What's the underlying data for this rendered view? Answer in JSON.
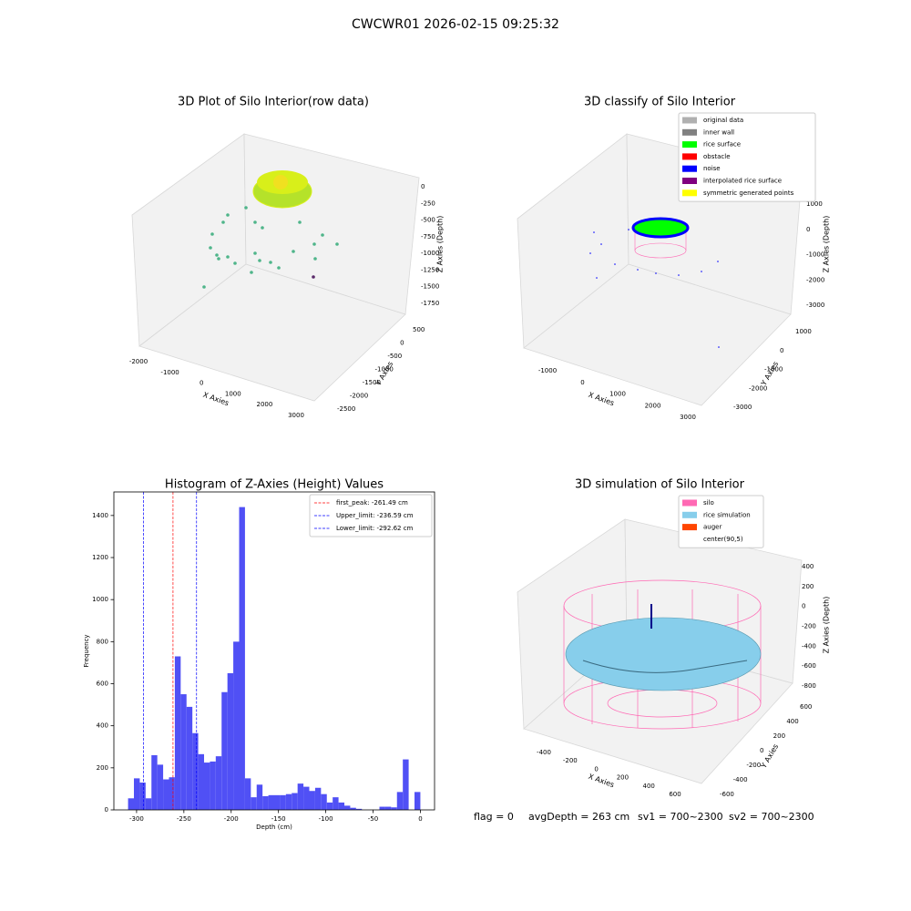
{
  "title": "CWCWR01 2026-02-15 09:25:32",
  "panels": [
    {
      "title": "3D Plot of Silo Interior(row data)",
      "x_label": "X Axies",
      "y_label": "Y Axies",
      "z_label": "Z Axies (Depth)",
      "xticks": [
        -2000,
        -1000,
        0,
        1000,
        2000,
        3000
      ],
      "yticks": [
        500,
        0,
        -500,
        -1000,
        -1500,
        -2000,
        -2500
      ],
      "zticks": [
        0,
        -250,
        -500,
        -750,
        -1000,
        -1250,
        -1500,
        -1750
      ]
    },
    {
      "title": "3D classify of Silo Interior",
      "x_label": "X Axies",
      "y_label": "Y Axies",
      "z_label": "Z Axies (Depth)",
      "xticks": [
        -1000,
        0,
        1000,
        2000,
        3000
      ],
      "yticks": [
        1000,
        0,
        -1000,
        -2000,
        -3000
      ],
      "zticks": [
        1000,
        0,
        -1000,
        -2000,
        -3000
      ],
      "legend": [
        {
          "name": "original data",
          "color": "#b0b0b0"
        },
        {
          "name": "inner wall",
          "color": "#808080"
        },
        {
          "name": "rice surface",
          "color": "#00ff00"
        },
        {
          "name": "obstacle",
          "color": "#ff0000"
        },
        {
          "name": "noise",
          "color": "#0000ff"
        },
        {
          "name": "interpolated rice surface",
          "color": "#800080"
        },
        {
          "name": "symmetric generated points",
          "color": "#ffff00"
        }
      ]
    },
    {
      "title": "3D simulation of Silo Interior",
      "x_label": "X Axies",
      "y_label": "Y Axies",
      "z_label": "Z Axies (Depth)",
      "xticks": [
        -400,
        -200,
        0,
        200,
        400,
        600
      ],
      "yticks": [
        600,
        400,
        200,
        0,
        -200,
        -400,
        -600
      ],
      "zticks": [
        400,
        200,
        0,
        -200,
        -400,
        -600,
        -800
      ],
      "legend": [
        {
          "name": "silo",
          "color": "#ff69b4"
        },
        {
          "name": "rice simulation",
          "color": "#87ceeb"
        },
        {
          "name": "auger",
          "color": "#ff4500"
        },
        {
          "name": "center(90,5)",
          "color": "#ffffff"
        }
      ]
    }
  ],
  "chart_data": {
    "type": "histogram",
    "title": "Histogram of Z-Axies (Height) Values",
    "x_label": "Depth (cm)",
    "y_label": "Frequency",
    "color": "#5050f5",
    "bins": [
      -309,
      -302.82,
      -296.64,
      -290.46,
      -284.28,
      -278.1,
      -271.92,
      -265.74,
      -259.56,
      -253.38,
      -247.2,
      -241.02,
      -234.84,
      -228.66,
      -222.48,
      -216.3,
      -210.12,
      -203.94,
      -197.76,
      -191.58,
      -185.4,
      -179.22,
      -173.04,
      -166.86,
      -160.68,
      -154.5,
      -148.32,
      -142.14,
      -135.96,
      -129.78,
      -123.6,
      -117.42,
      -111.24,
      -105.06,
      -98.88,
      -92.7,
      -86.52,
      -80.34,
      -74.16,
      -67.98,
      -61.8,
      -55.62,
      -49.44,
      -43.26,
      -37.08,
      -30.9,
      -24.72,
      -18.54,
      -12.36,
      -6.18,
      0
    ],
    "values": [
      55,
      150,
      130,
      55,
      260,
      215,
      145,
      155,
      730,
      550,
      490,
      365,
      265,
      225,
      230,
      255,
      560,
      650,
      800,
      1440,
      150,
      60,
      120,
      65,
      70,
      70,
      70,
      75,
      80,
      125,
      110,
      90,
      105,
      75,
      35,
      60,
      35,
      20,
      10,
      5,
      0,
      0,
      0,
      15,
      15,
      12,
      85,
      240,
      0,
      85
    ],
    "xlim": [
      -324,
      15
    ],
    "ylim": [
      0,
      1512
    ],
    "xticks": [
      -300,
      -250,
      -200,
      -150,
      -100,
      -50,
      0
    ],
    "yticks": [
      0,
      200,
      400,
      600,
      800,
      1000,
      1200,
      1400
    ],
    "lines": [
      {
        "name": "first_peak: -261.49 cm",
        "value": -261.49,
        "color": "#ff0000"
      },
      {
        "name": "Upper_limit: -236.59 cm",
        "value": -236.59,
        "color": "#0000ff"
      },
      {
        "name": "Lower_limit: -292.62 cm",
        "value": -292.62,
        "color": "#0000ff"
      }
    ],
    "legend_position": "upper right"
  },
  "footer": [
    "flag = 0",
    "avgDepth = 263 cm",
    "sv1 = 700~2300",
    "sv2 = 700~2300"
  ]
}
